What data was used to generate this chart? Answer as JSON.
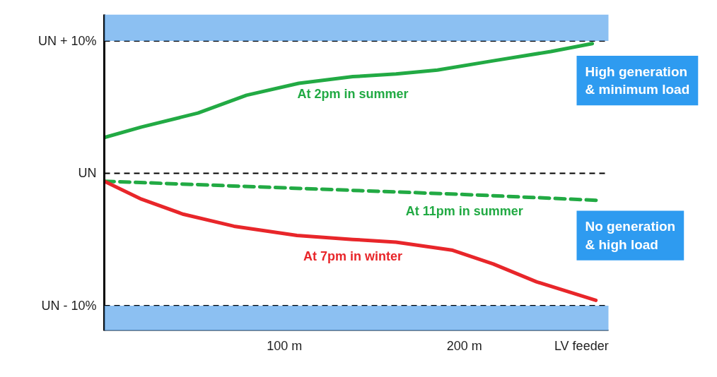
{
  "chart_data": {
    "type": "line",
    "xlim": [
      0,
      280
    ],
    "ylim": [
      -11.9,
      12
    ],
    "xticks": [
      {
        "value": 100,
        "label": "100 m"
      },
      {
        "value": 200,
        "label": "200 m"
      },
      {
        "value": 265,
        "label": "LV feeder"
      }
    ],
    "yticks": [
      {
        "value": 10,
        "label": "UN + 10%"
      },
      {
        "value": 0,
        "label": "UN"
      },
      {
        "value": -10,
        "label": "UN - 10%"
      }
    ],
    "grid": false,
    "legend": false,
    "series": [
      {
        "name": "At 2pm in summer",
        "color": "#22aa44",
        "line_style": "solid",
        "x": [
          0,
          20.7,
          52,
          79,
          108,
          138,
          162,
          185,
          216,
          248,
          271
        ],
        "values": [
          2.7,
          3.5,
          4.55,
          5.9,
          6.8,
          7.3,
          7.5,
          7.8,
          8.5,
          9.2,
          9.8
        ]
      },
      {
        "name": "At 11pm in summer",
        "color": "#22aa44",
        "line_style": "dashed",
        "x": [
          0,
          100,
          200,
          275
        ],
        "values": [
          -0.6,
          -1.1,
          -1.6,
          -2.05
        ]
      },
      {
        "name": "At 7pm in winter",
        "color": "#e8262a",
        "line_style": "solid",
        "x": [
          0,
          20.7,
          44,
          72,
          107,
          138,
          162,
          193,
          216,
          240,
          273
        ],
        "values": [
          -0.6,
          -1.96,
          -3.1,
          -4.0,
          -4.7,
          -5.0,
          -5.2,
          -5.8,
          -6.85,
          -8.2,
          -9.6
        ]
      }
    ],
    "ref_lines": [
      {
        "axis": "y",
        "value": 10,
        "label": null,
        "color": "#000000",
        "line_style": "dashed"
      },
      {
        "axis": "y",
        "value": 0,
        "label": null,
        "color": "#000000",
        "line_style": "dashed"
      },
      {
        "axis": "y",
        "value": -10,
        "label": null,
        "color": "#000000",
        "line_style": "dashed"
      }
    ],
    "bands": [
      {
        "axis": "y",
        "from": 10,
        "to": 12,
        "label": null,
        "color": "#6fb0ef"
      },
      {
        "axis": "y",
        "from": -11.9,
        "to": -10,
        "label": null,
        "color": "#6fb0ef"
      }
    ],
    "annotations": [
      "High generation\n& minimum load",
      "No generation\n& high load"
    ]
  }
}
